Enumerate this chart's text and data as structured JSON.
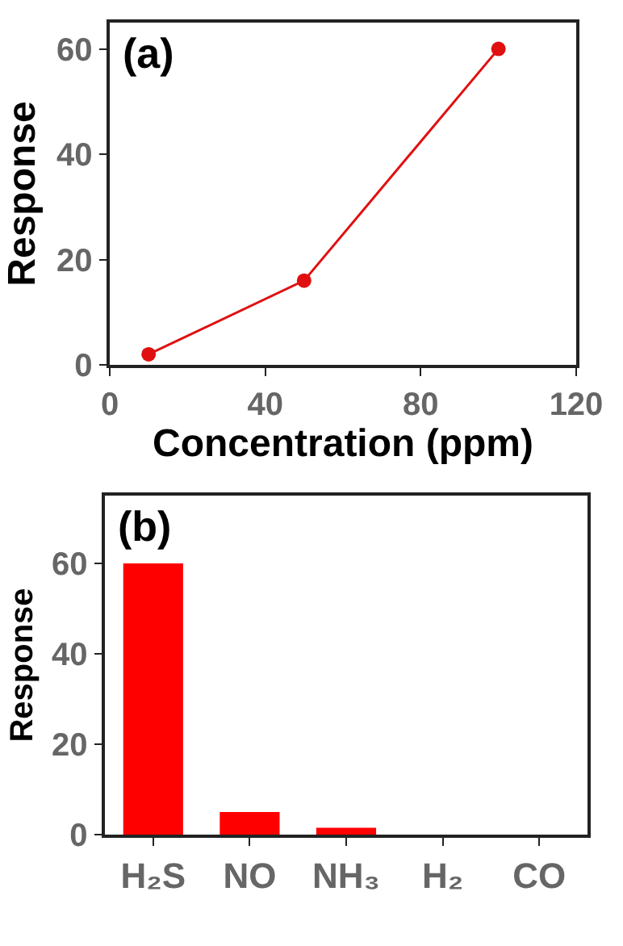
{
  "chart_data": [
    {
      "type": "line",
      "xlabel": "Concentration (ppm)",
      "ylabel": "Response",
      "annotations": [
        "(a)"
      ],
      "x": [
        10,
        50,
        100
      ],
      "series": [
        {
          "color": "#e01010",
          "values": [
            2,
            16,
            60
          ]
        }
      ],
      "xlim": [
        0,
        120
      ],
      "xticks": [
        0,
        40,
        80,
        120
      ],
      "ylim": [
        0,
        65
      ],
      "yticks": [
        0,
        20,
        40,
        60
      ],
      "marker": "circle",
      "line_style": "solid"
    },
    {
      "type": "bar",
      "ylabel": "Response",
      "annotations": [
        "(b)"
      ],
      "categories": [
        "H₂S",
        "NO",
        "NH₃",
        "H₂",
        "CO"
      ],
      "series": [
        {
          "color": "#ff0000",
          "values": [
            60,
            5,
            1.5,
            0,
            0
          ]
        }
      ],
      "ylim": [
        0,
        75
      ],
      "yticks": [
        0,
        20,
        40,
        60
      ]
    }
  ]
}
